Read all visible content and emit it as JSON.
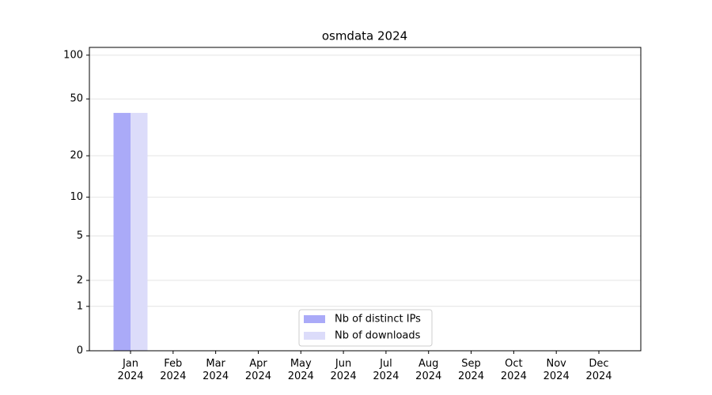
{
  "chart_data": {
    "type": "bar",
    "title": "osmdata 2024",
    "categories": [
      "Jan 2024",
      "Feb 2024",
      "Mar 2024",
      "Apr 2024",
      "May 2024",
      "Jun 2024",
      "Jul 2024",
      "Aug 2024",
      "Sep 2024",
      "Oct 2024",
      "Nov 2024",
      "Dec 2024"
    ],
    "series": [
      {
        "name": "Nb of distinct IPs",
        "color": "#aaaaf8",
        "values": [
          40,
          0,
          0,
          0,
          0,
          0,
          0,
          0,
          0,
          0,
          0,
          0
        ]
      },
      {
        "name": "Nb of downloads",
        "color": "#dcdcfa",
        "values": [
          40,
          0,
          0,
          0,
          0,
          0,
          0,
          0,
          0,
          0,
          0,
          0
        ]
      }
    ],
    "yscale": "log1p",
    "ylim": [
      0,
      113
    ],
    "yticks": [
      0,
      1,
      2,
      5,
      10,
      20,
      50,
      100
    ],
    "grid": true,
    "legend": "lower center"
  }
}
